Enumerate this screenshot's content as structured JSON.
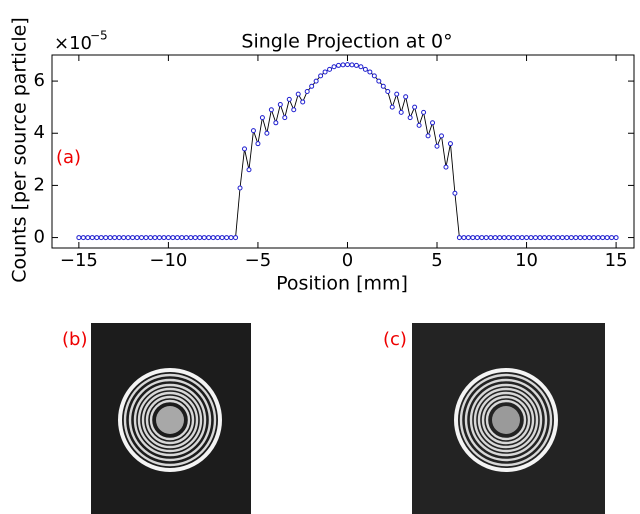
{
  "chart_data": {
    "type": "line",
    "title": "Single Projection at 0°",
    "x_label": "Position [mm]",
    "y_label": "Counts [per source particle]",
    "y_scale_base": "×10",
    "y_scale_exponent": "−5",
    "panel_labels": [
      "(a)",
      "(b)",
      "(c)"
    ],
    "line_color": "#000000",
    "marker_color": "#1f1fd0",
    "xlim": [
      -16.5,
      16
    ],
    "ylim": [
      -0.4,
      7
    ],
    "xticks": [
      {
        "value": -15,
        "label": "−15"
      },
      {
        "value": -10,
        "label": "−10"
      },
      {
        "value": -5,
        "label": "−5"
      },
      0,
      5,
      10,
      15
    ],
    "yticks": [
      0,
      2,
      4,
      6
    ],
    "x": [
      -15,
      -14.75,
      -14.5,
      -14.25,
      -14,
      -13.75,
      -13.5,
      -13.25,
      -13,
      -12.75,
      -12.5,
      -12.25,
      -12,
      -11.75,
      -11.5,
      -11.25,
      -11,
      -10.75,
      -10.5,
      -10.25,
      -10,
      -9.75,
      -9.5,
      -9.25,
      -9,
      -8.75,
      -8.5,
      -8.25,
      -8,
      -7.75,
      -7.5,
      -7.25,
      -7,
      -6.75,
      -6.5,
      -6.25,
      -6,
      -5.75,
      -5.5,
      -5.25,
      -5,
      -4.75,
      -4.5,
      -4.25,
      -4,
      -3.75,
      -3.5,
      -3.25,
      -3,
      -2.75,
      -2.5,
      -2.25,
      -2,
      -1.75,
      -1.5,
      -1.25,
      -1,
      -0.75,
      -0.5,
      -0.25,
      0,
      0.25,
      0.5,
      0.75,
      1,
      1.25,
      1.5,
      1.75,
      2,
      2.25,
      2.5,
      2.75,
      3,
      3.25,
      3.5,
      3.75,
      4,
      4.25,
      4.5,
      4.75,
      5,
      5.25,
      5.5,
      5.75,
      6,
      6.25,
      6.5,
      6.75,
      7,
      7.25,
      7.5,
      7.75,
      8,
      8.25,
      8.5,
      8.75,
      9,
      9.25,
      9.5,
      9.75,
      10,
      10.25,
      10.5,
      10.75,
      11,
      11.25,
      11.5,
      11.75,
      12,
      12.25,
      12.5,
      12.75,
      13,
      13.25,
      13.5,
      13.75,
      14,
      14.25,
      14.5,
      14.75,
      15
    ],
    "values": [
      0,
      0,
      0,
      0,
      0,
      0,
      0,
      0,
      0,
      0,
      0,
      0,
      0,
      0,
      0,
      0,
      0,
      0,
      0,
      0,
      0,
      0,
      0,
      0,
      0,
      0,
      0,
      0,
      0,
      0,
      0,
      0,
      0,
      0,
      0,
      0,
      1.9,
      3.4,
      2.6,
      4.1,
      3.6,
      4.6,
      4.0,
      4.9,
      4.4,
      5.1,
      4.6,
      5.3,
      4.9,
      5.5,
      5.2,
      5.6,
      5.8,
      6.0,
      6.2,
      6.35,
      6.45,
      6.55,
      6.6,
      6.62,
      6.63,
      6.62,
      6.6,
      6.55,
      6.45,
      6.35,
      6.2,
      6.0,
      5.8,
      5.6,
      5.0,
      5.5,
      4.8,
      5.4,
      4.6,
      5.0,
      4.3,
      4.8,
      3.9,
      4.4,
      3.5,
      3.9,
      2.7,
      3.6,
      1.7,
      0,
      0,
      0,
      0,
      0,
      0,
      0,
      0,
      0,
      0,
      0,
      0,
      0,
      0,
      0,
      0,
      0,
      0,
      0,
      0,
      0,
      0,
      0,
      0,
      0,
      0,
      0,
      0,
      0,
      0,
      0,
      0,
      0,
      0,
      0,
      0
    ]
  }
}
